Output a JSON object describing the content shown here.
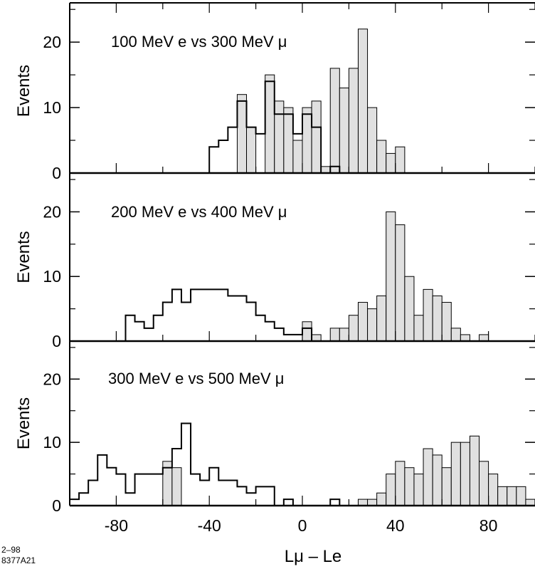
{
  "chart_data": {
    "type": "histogram",
    "x_axis": {
      "label": "Lμ – Le",
      "range": [
        -100,
        100
      ],
      "tick_labels": [
        "-80",
        "-40",
        "0",
        "40",
        "80"
      ],
      "tick_values": [
        -80,
        -40,
        0,
        40,
        80
      ]
    },
    "bin_width": 4,
    "y_tick_labels": [
      "0",
      "10",
      "20"
    ],
    "y_tick_values": [
      0,
      10,
      20
    ],
    "fill_color": "#e0e0e0",
    "line_color": "#000000",
    "stamp": [
      "2–98",
      "8377A21"
    ],
    "panels": [
      {
        "title": "100 MeV e vs 300 MeV μ",
        "ylabel": "Events",
        "ylim": [
          0,
          26
        ],
        "electron_outline": {
          "bin_starts": [
            -40,
            -36,
            -32,
            -28,
            -24,
            -20,
            -16,
            -12,
            -8,
            -4,
            0,
            4,
            8,
            12,
            16
          ],
          "counts": [
            4,
            5,
            7,
            11,
            7,
            6,
            14,
            9,
            9,
            6,
            9,
            7,
            0,
            1,
            0
          ]
        },
        "muon_filled": {
          "bin_starts": [
            -28,
            -24,
            -16,
            -12,
            -8,
            -4,
            0,
            4,
            8,
            12,
            16,
            20,
            24,
            28,
            32,
            36,
            40
          ],
          "counts": [
            12,
            7,
            15,
            11,
            10,
            5,
            10,
            11,
            1,
            16,
            13,
            16,
            22,
            10,
            5,
            3,
            4
          ]
        }
      },
      {
        "title": "200 MeV e vs 400 MeV μ",
        "ylabel": "Events",
        "ylim": [
          0,
          26
        ],
        "electron_outline": {
          "bin_starts": [
            -76,
            -72,
            -68,
            -64,
            -60,
            -56,
            -52,
            -48,
            -44,
            -40,
            -36,
            -32,
            -28,
            -24,
            -20,
            -16,
            -12,
            -8,
            -4,
            0,
            4
          ],
          "counts": [
            4,
            3,
            2,
            4,
            6,
            8,
            6,
            8,
            8,
            8,
            8,
            7,
            7,
            6,
            4,
            3,
            2,
            1,
            1,
            2,
            0
          ]
        },
        "muon_filled": {
          "bin_starts": [
            0,
            4,
            12,
            16,
            20,
            24,
            28,
            32,
            36,
            40,
            44,
            48,
            52,
            56,
            60,
            64,
            68,
            76
          ],
          "counts": [
            3,
            1,
            2,
            2,
            4,
            6,
            5,
            7,
            20,
            18,
            10,
            4,
            8,
            7,
            6,
            2,
            1,
            1
          ]
        }
      },
      {
        "title": "300 MeV e vs 500 MeV μ",
        "ylabel": "Events",
        "ylim": [
          0,
          26
        ],
        "electron_outline": {
          "bin_starts": [
            -100,
            -96,
            -92,
            -88,
            -84,
            -80,
            -76,
            -72,
            -68,
            -64,
            -60,
            -56,
            -52,
            -48,
            -44,
            -40,
            -36,
            -32,
            -28,
            -24,
            -20,
            -16,
            -12,
            -8,
            -4,
            0,
            4,
            8,
            12,
            16
          ],
          "counts": [
            1,
            2,
            4,
            8,
            6,
            5,
            2,
            5,
            5,
            5,
            6,
            9,
            13,
            5,
            4,
            6,
            4,
            4,
            3,
            2,
            3,
            3,
            0,
            1,
            0,
            0,
            0,
            0,
            1,
            0
          ]
        },
        "muon_filled": {
          "bin_starts": [
            -60,
            -56,
            24,
            28,
            32,
            36,
            40,
            44,
            48,
            52,
            56,
            60,
            64,
            68,
            72,
            76,
            80,
            84,
            88,
            92,
            96
          ],
          "counts": [
            7,
            6,
            1,
            1,
            2,
            5,
            7,
            6,
            5,
            9,
            8,
            6,
            10,
            10,
            11,
            7,
            5,
            3,
            3,
            3,
            1
          ]
        }
      }
    ]
  }
}
